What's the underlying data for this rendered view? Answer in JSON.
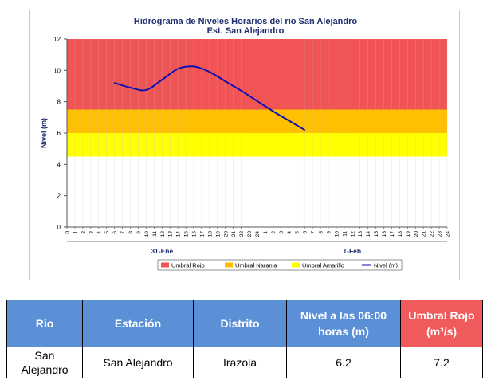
{
  "chart_data": {
    "type": "line",
    "title": "Hidrograma de Niveles Horarios del rio San Alejandro",
    "subtitle": "Est. San Alejandro",
    "ylabel": "Nivel (m)",
    "xlabel": "",
    "ylim": [
      0,
      12
    ],
    "yticks": [
      "0",
      "2",
      "4",
      "6",
      "8",
      "10",
      "12"
    ],
    "hour_ticks": [
      "0",
      "1",
      "2",
      "3",
      "4",
      "5",
      "6",
      "7",
      "8",
      "9",
      "10",
      "11",
      "12",
      "13",
      "14",
      "15",
      "16",
      "17",
      "18",
      "19",
      "20",
      "21",
      "22",
      "23",
      "24"
    ],
    "day_labels": [
      "31-Ene",
      "1-Feb"
    ],
    "bands": [
      {
        "name": "Umbral Rojo",
        "from": 7.5,
        "to": 12,
        "color": "#f15454"
      },
      {
        "name": "Umbral Naranja",
        "from": 6.0,
        "to": 7.5,
        "color": "#ffc000"
      },
      {
        "name": "Umbral Amarillo",
        "from": 4.5,
        "to": 6.0,
        "color": "#ffff00"
      }
    ],
    "series": [
      {
        "name": "Nivel (m)",
        "color": "#1010b0",
        "x": [
          6,
          8,
          10,
          12,
          14,
          16,
          18,
          20,
          22,
          24,
          26,
          28,
          30
        ],
        "values": [
          9.2,
          8.9,
          8.75,
          9.4,
          10.1,
          10.25,
          9.9,
          9.3,
          8.7,
          8.05,
          7.4,
          6.8,
          6.2
        ]
      }
    ],
    "legend": [
      "Umbral Rojo",
      "Umbral Naranja",
      "Umbral Amarillo",
      "Nivel (m)"
    ],
    "legend_position": "bottom",
    "grid": true
  },
  "table": {
    "headers": [
      "Rio",
      "Estación",
      "Distrito",
      "Nivel a las 06:00 horas (m)",
      "Umbral Rojo (m³/s)"
    ],
    "rows": [
      [
        "San Alejandro",
        "San Alejandro",
        "Irazola",
        "6.2",
        "7.2"
      ]
    ]
  }
}
